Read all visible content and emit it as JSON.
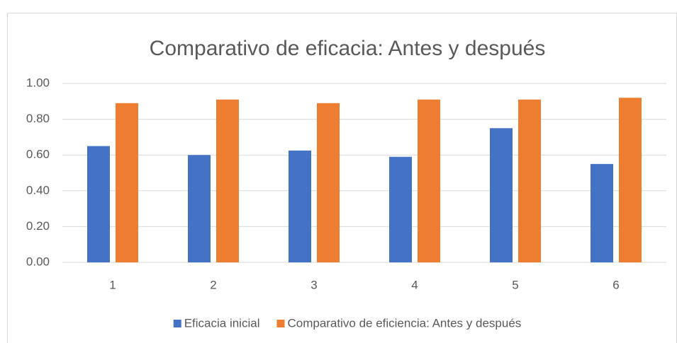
{
  "chart_data": {
    "type": "bar",
    "title": "Comparativo de eficacia: Antes y después",
    "categories": [
      "1",
      "2",
      "3",
      "4",
      "5",
      "6"
    ],
    "series": [
      {
        "name": "Eficacia inicial",
        "color": "#4472c4",
        "values": [
          0.65,
          0.6,
          0.625,
          0.59,
          0.75,
          0.55
        ]
      },
      {
        "name": "Comparativo de eficiencia: Antes y después",
        "color": "#ed7d31",
        "values": [
          0.89,
          0.91,
          0.89,
          0.91,
          0.91,
          0.92
        ]
      }
    ],
    "ylim": [
      0,
      1
    ],
    "yticks": [
      {
        "value": 0,
        "label": "0.00"
      },
      {
        "value": 0.2,
        "label": "0.20"
      },
      {
        "value": 0.4,
        "label": "0.40"
      },
      {
        "value": 0.6,
        "label": "0.60"
      },
      {
        "value": 0.8,
        "label": "0.80"
      },
      {
        "value": 1,
        "label": "1.00"
      }
    ],
    "grid": true,
    "legend": "bottom"
  }
}
